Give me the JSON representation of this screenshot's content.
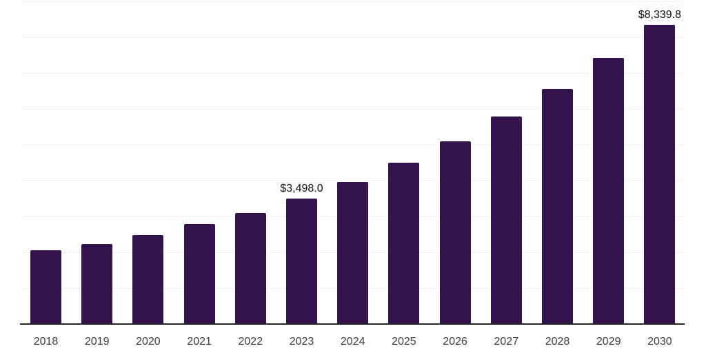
{
  "chart_data": {
    "type": "bar",
    "title": "",
    "xlabel": "",
    "ylabel": "",
    "legend": "none",
    "grid": true,
    "categories": [
      "2018",
      "2019",
      "2020",
      "2021",
      "2022",
      "2023",
      "2024",
      "2025",
      "2026",
      "2027",
      "2028",
      "2029",
      "2030"
    ],
    "values": [
      2065,
      2240,
      2490,
      2780,
      3105,
      3498.0,
      3960,
      4495,
      5105,
      5780,
      6550,
      7430,
      8339.8
    ],
    "point_labels": [
      "",
      "",
      "",
      "",
      "",
      "$3,498.0",
      "",
      "",
      "",
      "",
      "",
      "",
      "$8,339.8"
    ],
    "ylim": [
      0,
      9000
    ],
    "gridline_interval": 1000,
    "colors": {
      "bar": "#33134e",
      "axis_line": "#262626",
      "gridline": "#f3f3f3",
      "tick_label": "#3d3d3d",
      "data_label": "#111111",
      "background": "#ffffff"
    }
  }
}
